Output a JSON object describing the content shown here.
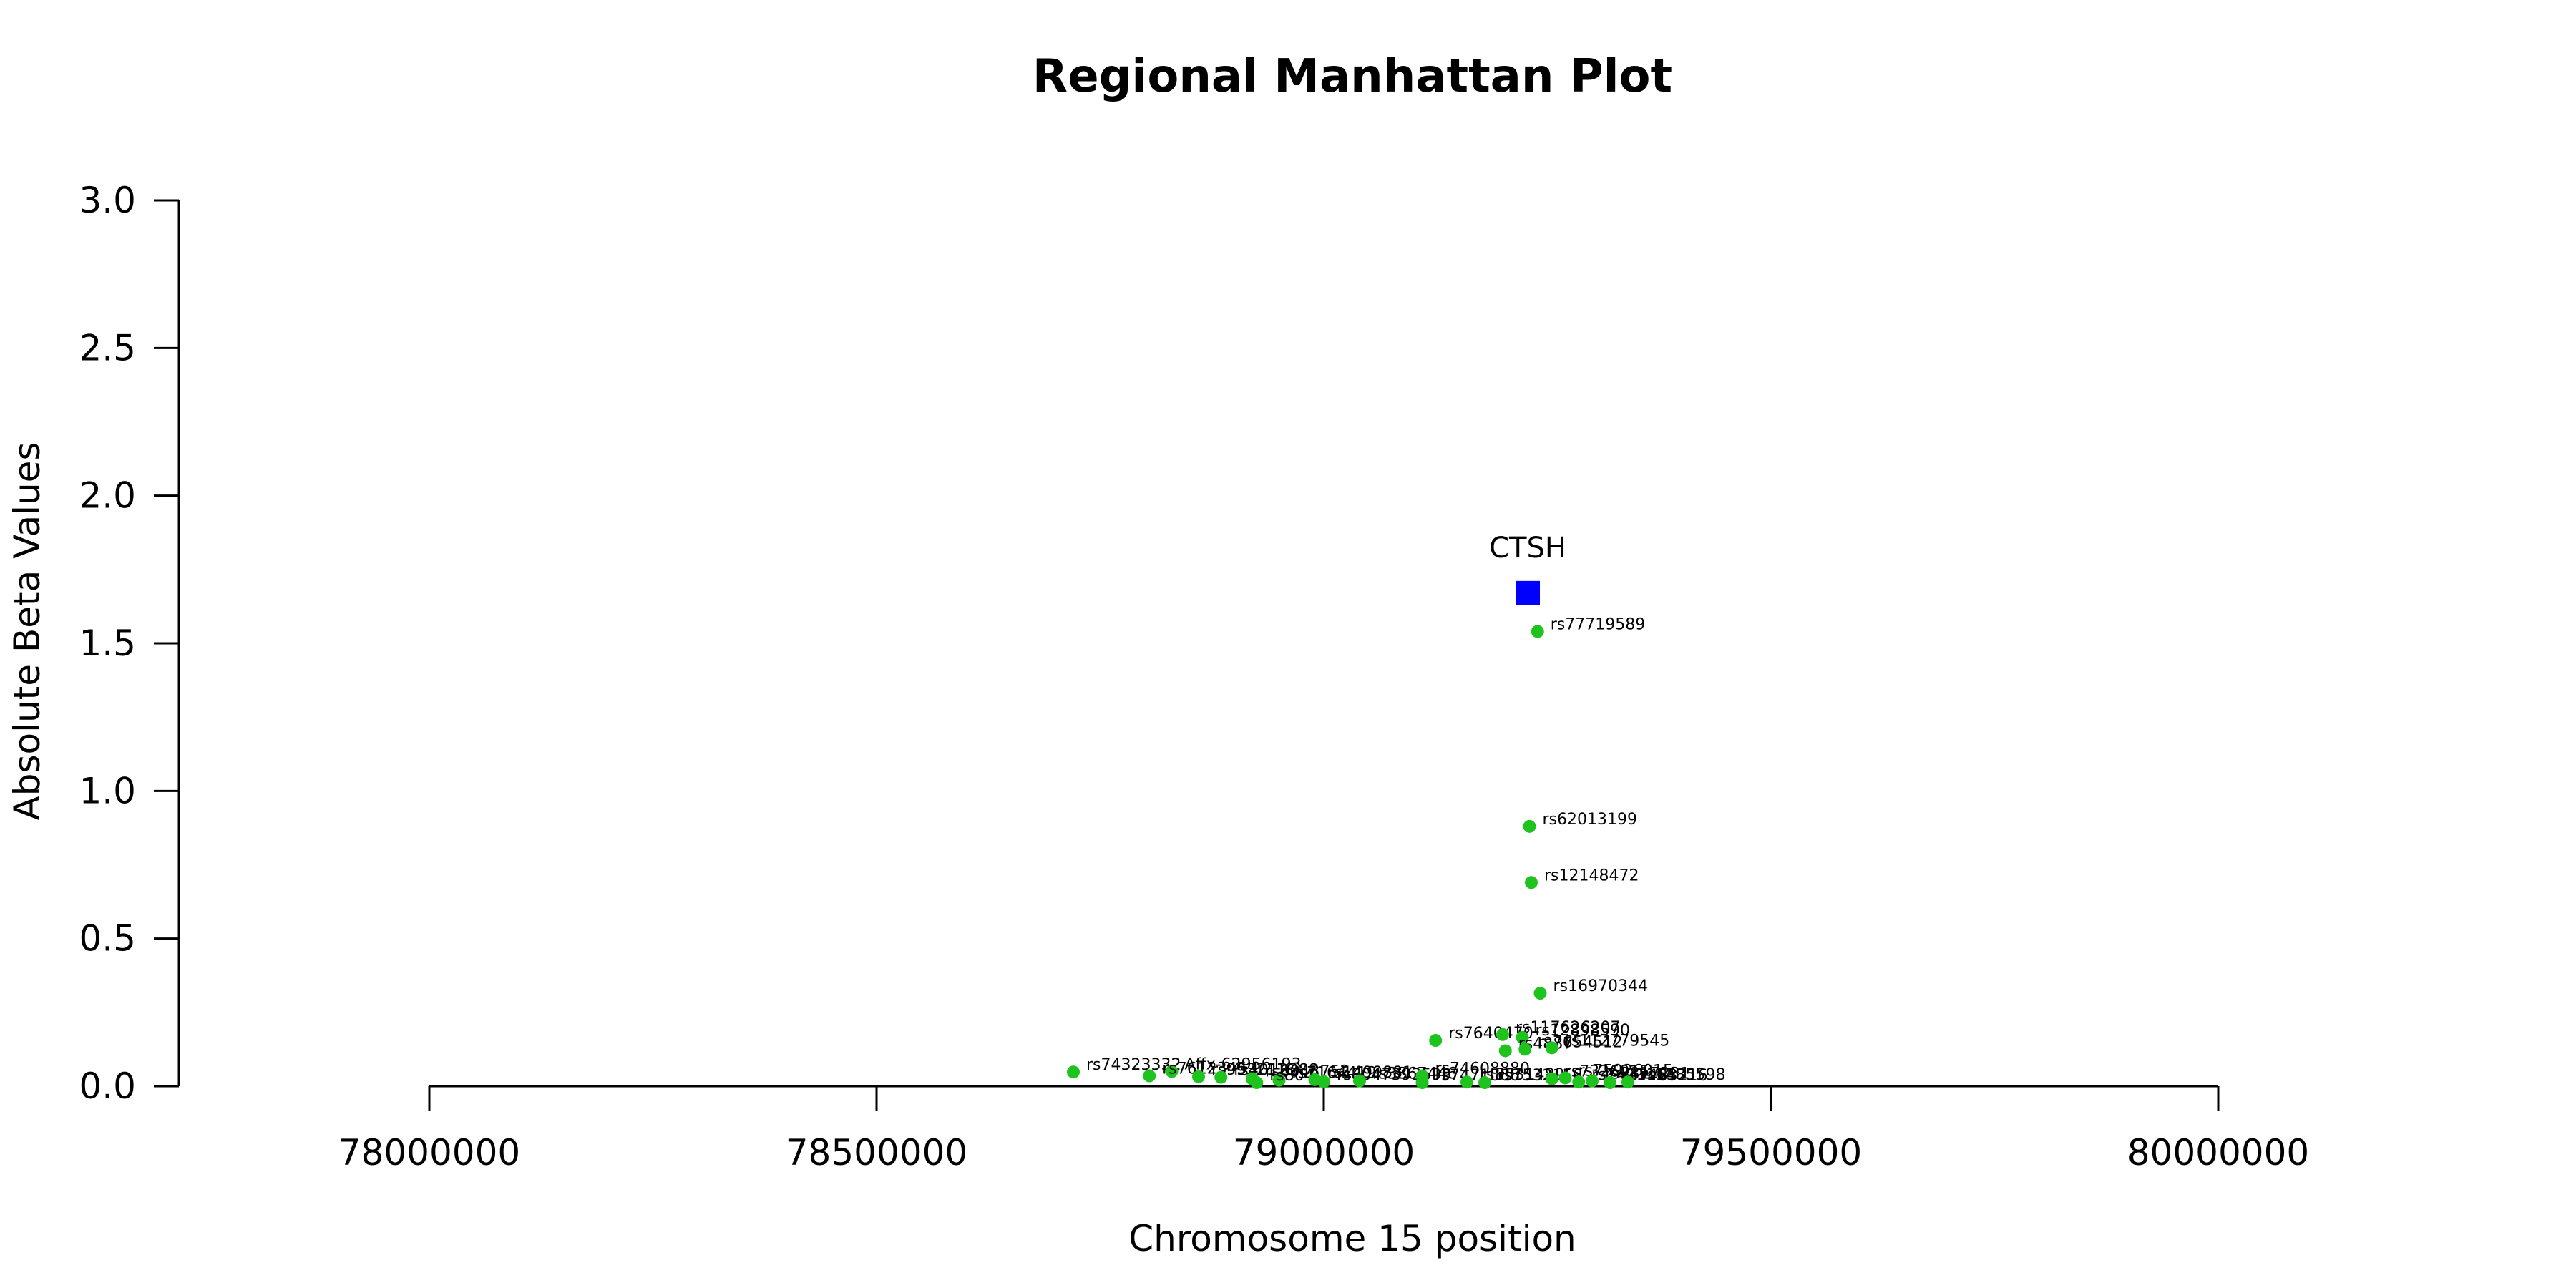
{
  "chart_data": {
    "type": "scatter",
    "title": "Regional Manhattan Plot",
    "xlabel": "Chromosome 15 position",
    "ylabel": "Absolute Beta Values",
    "xlim": [
      78000000,
      80000000
    ],
    "ylim": [
      0,
      3.0
    ],
    "x_ticks": [
      78000000,
      78500000,
      79000000,
      79500000,
      80000000
    ],
    "x_tick_labels": [
      "78000000",
      "78500000",
      "79000000",
      "79500000",
      "80000000"
    ],
    "y_ticks": [
      0,
      0.5,
      1.0,
      1.5,
      2.0,
      2.5,
      3.0
    ],
    "y_tick_labels": [
      "0.0",
      "0.5",
      "1.0",
      "1.5",
      "2.0",
      "2.5",
      "3.0"
    ],
    "grid": false,
    "colors": {
      "snp": "#1ec31e",
      "gene": "#0000ff"
    },
    "gene": {
      "name": "CTSH",
      "x": 79228000,
      "y": 1.67
    },
    "series": [
      {
        "values": [
          {
            "label": "rs77719589",
            "x": 79239000,
            "y": 1.54
          },
          {
            "label": "rs62013199",
            "x": 79230000,
            "y": 0.88
          },
          {
            "label": "rs12148472",
            "x": 79232000,
            "y": 0.69
          },
          {
            "label": "rs16970344",
            "x": 79242000,
            "y": 0.315
          },
          {
            "label": "rs7640470",
            "x": 79125000,
            "y": 0.155
          },
          {
            "label": "rs117626207",
            "x": 79200000,
            "y": 0.175
          },
          {
            "label": "rs12898590",
            "x": 79222000,
            "y": 0.165
          },
          {
            "label": "rs4887",
            "x": 79203000,
            "y": 0.12
          },
          {
            "label": "rs7654512",
            "x": 79225000,
            "y": 0.125
          },
          {
            "label": "rs112779545",
            "x": 79255000,
            "y": 0.13
          },
          {
            "label": "rs74323332",
            "x": 78720000,
            "y": 0.048
          },
          {
            "label": "Affx-62956193",
            "x": 78830000,
            "y": 0.05
          },
          {
            "label": "rs7612345",
            "x": 78805000,
            "y": 0.035
          },
          {
            "label": "rs9932116",
            "x": 78860000,
            "y": 0.032
          },
          {
            "label": "rs4012288",
            "x": 78885000,
            "y": 0.03
          },
          {
            "label": "rs8043752",
            "x": 78920000,
            "y": 0.025
          },
          {
            "label": "rs7164419",
            "x": 78950000,
            "y": 0.02
          },
          {
            "label": "rs804",
            "x": 78925000,
            "y": 0.012
          },
          {
            "label": "rs1499881",
            "x": 78990000,
            "y": 0.022
          },
          {
            "label": "rs8047393599",
            "x": 79000000,
            "y": 0.015
          },
          {
            "label": "rs3867446",
            "x": 79040000,
            "y": 0.018
          },
          {
            "label": "rs74608880",
            "x": 79110000,
            "y": 0.035
          },
          {
            "label": "rs7471066",
            "x": 79110000,
            "y": 0.012
          },
          {
            "label": "rs8531489",
            "x": 79160000,
            "y": 0.014
          },
          {
            "label": "rs7532156",
            "x": 79180000,
            "y": 0.012
          },
          {
            "label": "rs7326015",
            "x": 79255000,
            "y": 0.025
          },
          {
            "label": "rs75926015",
            "x": 79270000,
            "y": 0.028
          },
          {
            "label": "rs7421165",
            "x": 79285000,
            "y": 0.014
          },
          {
            "label": "rs3817231",
            "x": 79300000,
            "y": 0.018
          },
          {
            "label": "rs7483216",
            "x": 79320000,
            "y": 0.012
          },
          {
            "label": "rs1485598",
            "x": 79340000,
            "y": 0.014
          }
        ]
      }
    ]
  }
}
